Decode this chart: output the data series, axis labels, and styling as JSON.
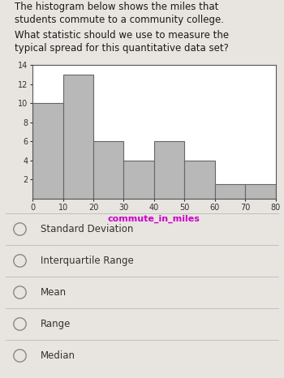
{
  "title_line1": "The histogram below shows the miles that",
  "title_line2": "students commute to a community college.",
  "question_line1": "What statistic should we use to measure the",
  "question_line2": "typical spread for this quantitative data set?",
  "bar_edges": [
    0,
    10,
    20,
    30,
    40,
    50,
    60,
    70,
    80
  ],
  "bar_heights": [
    10,
    13,
    6,
    4,
    6,
    4,
    1.5,
    1.5
  ],
  "bar_color": "#b8b8b8",
  "bar_edgecolor": "#666666",
  "xlabel": "commute_in_miles",
  "xlabel_color": "#cc00cc",
  "ylabel_ticks": [
    2,
    4,
    6,
    8,
    10,
    12,
    14
  ],
  "xlim": [
    0,
    80
  ],
  "ylim": [
    0,
    14
  ],
  "xticks": [
    0,
    10,
    20,
    30,
    40,
    50,
    60,
    70,
    80
  ],
  "options": [
    "Standard Deviation",
    "Interquartile Range",
    "Mean",
    "Range",
    "Median"
  ],
  "bg_color": "#e8e4df",
  "plot_bg_color": "#ffffff",
  "text_color": "#1a1a1a",
  "option_text_color": "#333333",
  "divider_color": "#bbbbbb",
  "circle_color": "#888888"
}
